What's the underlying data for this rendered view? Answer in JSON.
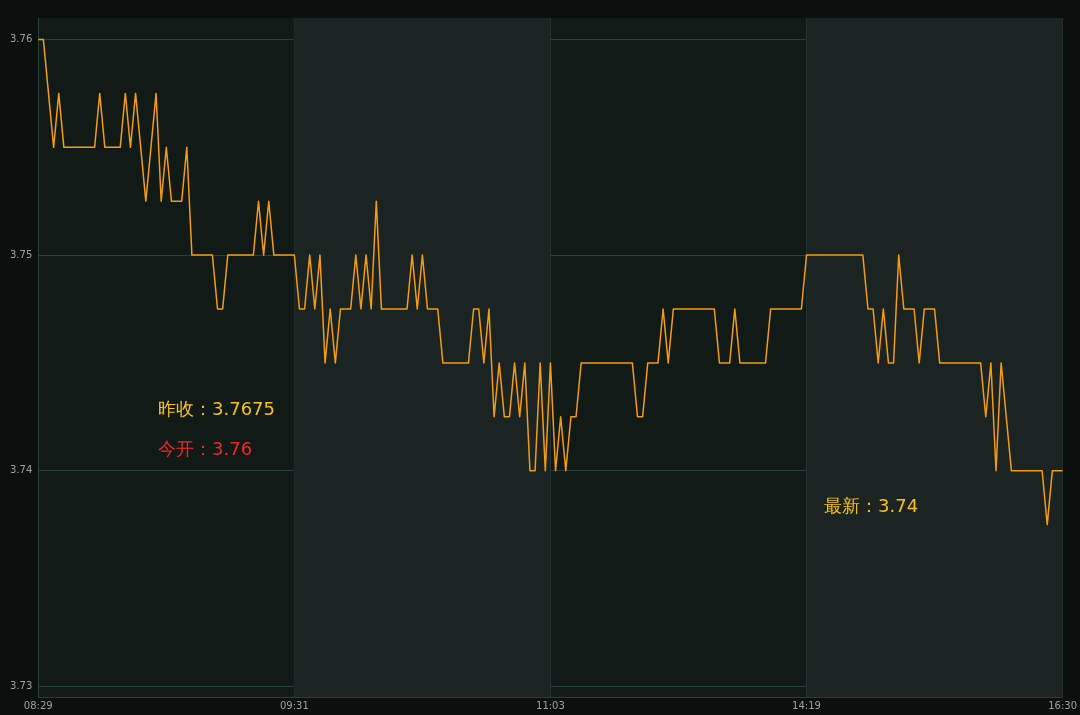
{
  "chart_data": {
    "type": "line",
    "categories": [
      "08:29",
      null,
      null,
      null,
      null,
      null,
      null,
      null,
      null,
      null,
      null,
      null,
      null,
      null,
      null,
      null,
      null,
      null,
      null,
      null,
      null,
      null,
      null,
      null,
      null,
      null,
      null,
      null,
      null,
      null,
      null,
      null,
      null,
      null,
      null,
      null,
      null,
      null,
      null,
      null,
      null,
      null,
      null,
      null,
      null,
      null,
      null,
      null,
      null,
      null,
      "09:31",
      null,
      null,
      null,
      null,
      null,
      null,
      null,
      null,
      null,
      null,
      null,
      null,
      null,
      null,
      null,
      null,
      null,
      null,
      null,
      null,
      null,
      null,
      null,
      null,
      null,
      null,
      null,
      null,
      null,
      null,
      null,
      null,
      null,
      null,
      null,
      null,
      null,
      null,
      null,
      null,
      null,
      null,
      null,
      null,
      null,
      null,
      null,
      null,
      null,
      "11:03",
      null,
      null,
      null,
      null,
      null,
      null,
      null,
      null,
      null,
      null,
      null,
      null,
      null,
      null,
      null,
      null,
      null,
      null,
      null,
      null,
      null,
      null,
      null,
      null,
      null,
      null,
      null,
      null,
      null,
      null,
      null,
      null,
      null,
      null,
      null,
      null,
      null,
      null,
      null,
      null,
      null,
      null,
      null,
      null,
      null,
      null,
      null,
      null,
      null,
      "14:19",
      null,
      null,
      null,
      null,
      null,
      null,
      null,
      null,
      null,
      null,
      null,
      null,
      null,
      null,
      null,
      null,
      null,
      null,
      null,
      null,
      null,
      null,
      null,
      null,
      null,
      null,
      null,
      null,
      null,
      null,
      null,
      null,
      null,
      null,
      null,
      null,
      null,
      null,
      null,
      null,
      null,
      null,
      null,
      null,
      null,
      null,
      null,
      null,
      null,
      "16:30"
    ],
    "series": [
      {
        "color": "#f39c12",
        "values": [
          3.76,
          3.76,
          3.7575,
          3.755,
          3.7575,
          3.755,
          3.755,
          3.755,
          3.755,
          3.755,
          3.755,
          3.755,
          3.7575,
          3.755,
          3.755,
          3.755,
          3.755,
          3.7575,
          3.755,
          3.7575,
          3.755,
          3.7525,
          3.755,
          3.7575,
          3.7525,
          3.755,
          3.7525,
          3.7525,
          3.7525,
          3.755,
          3.75,
          3.75,
          3.75,
          3.75,
          3.75,
          3.7475,
          3.7475,
          3.75,
          3.75,
          3.75,
          3.75,
          3.75,
          3.75,
          3.7525,
          3.75,
          3.7525,
          3.75,
          3.75,
          3.75,
          3.75,
          3.75,
          3.7475,
          3.7475,
          3.75,
          3.7475,
          3.75,
          3.745,
          3.7475,
          3.745,
          3.7475,
          3.7475,
          3.7475,
          3.75,
          3.7475,
          3.75,
          3.7475,
          3.7525,
          3.7475,
          3.7475,
          3.7475,
          3.7475,
          3.7475,
          3.7475,
          3.75,
          3.7475,
          3.75,
          3.7475,
          3.7475,
          3.7475,
          3.745,
          3.745,
          3.745,
          3.745,
          3.745,
          3.745,
          3.7475,
          3.7475,
          3.745,
          3.7475,
          3.7425,
          3.745,
          3.7425,
          3.7425,
          3.745,
          3.7425,
          3.745,
          3.74,
          3.74,
          3.745,
          3.74,
          3.745,
          3.74,
          3.7425,
          3.74,
          3.7425,
          3.7425,
          3.745,
          3.745,
          3.745,
          3.745,
          3.745,
          3.745,
          3.745,
          3.745,
          3.745,
          3.745,
          3.745,
          3.7425,
          3.7425,
          3.745,
          3.745,
          3.745,
          3.7475,
          3.745,
          3.7475,
          3.7475,
          3.7475,
          3.7475,
          3.7475,
          3.7475,
          3.7475,
          3.7475,
          3.7475,
          3.745,
          3.745,
          3.745,
          3.7475,
          3.745,
          3.745,
          3.745,
          3.745,
          3.745,
          3.745,
          3.7475,
          3.7475,
          3.7475,
          3.7475,
          3.7475,
          3.7475,
          3.7475,
          3.75,
          3.75,
          3.75,
          3.75,
          3.75,
          3.75,
          3.75,
          3.75,
          3.75,
          3.75,
          3.75,
          3.75,
          3.7475,
          3.7475,
          3.745,
          3.7475,
          3.745,
          3.745,
          3.75,
          3.7475,
          3.7475,
          3.7475,
          3.745,
          3.7475,
          3.7475,
          3.7475,
          3.745,
          3.745,
          3.745,
          3.745,
          3.745,
          3.745,
          3.745,
          3.745,
          3.745,
          3.7425,
          3.745,
          3.74,
          3.745,
          3.7425,
          3.74,
          3.74,
          3.74,
          3.74,
          3.74,
          3.74,
          3.74,
          3.7375,
          3.74,
          3.74,
          3.74
        ]
      }
    ],
    "ylim": [
      3.7295,
      3.761
    ],
    "yticks": [
      3.73,
      3.74,
      3.75,
      3.76
    ],
    "grid": true,
    "legend": false,
    "marker": "none",
    "line_style": "solid",
    "bands": [
      {
        "axis": "x",
        "from": "09:31",
        "to": "11:03",
        "color": "#1b2423"
      },
      {
        "axis": "x",
        "from": "14:19",
        "to": "16:30",
        "color": "#1b2423"
      }
    ],
    "annotations": [
      "昨收：3.7675",
      "今开：3.76",
      "最新：3.74"
    ]
  }
}
